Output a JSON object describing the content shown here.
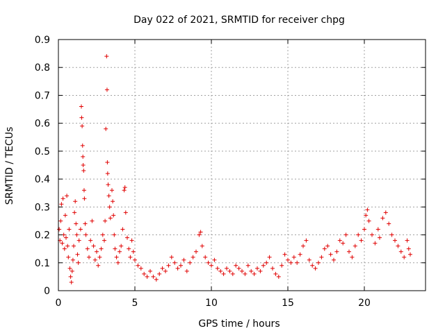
{
  "chart_data": {
    "type": "scatter",
    "title": "Day 022 of 2021, SRMTID for receiver chpg",
    "xlabel": "GPS time / hours",
    "ylabel": "SRMTID / TECUs",
    "xlim": [
      0,
      24
    ],
    "ylim": [
      0,
      0.9
    ],
    "xticks": [
      0,
      5,
      10,
      15,
      20
    ],
    "yticks": [
      0,
      0.1,
      0.2,
      0.3,
      0.4,
      0.5,
      0.6,
      0.7,
      0.8,
      0.9
    ],
    "grid": true,
    "marker": "+",
    "color": "#e00000",
    "series": [
      {
        "name": "SRMTID",
        "points": [
          [
            0.05,
            0.22
          ],
          [
            0.1,
            0.18
          ],
          [
            0.15,
            0.25
          ],
          [
            0.2,
            0.31
          ],
          [
            0.25,
            0.17
          ],
          [
            0.3,
            0.33
          ],
          [
            0.35,
            0.2
          ],
          [
            0.4,
            0.15
          ],
          [
            0.45,
            0.27
          ],
          [
            0.5,
            0.19
          ],
          [
            0.55,
            0.34
          ],
          [
            0.6,
            0.16
          ],
          [
            0.65,
            0.12
          ],
          [
            0.7,
            0.22
          ],
          [
            0.75,
            0.08
          ],
          [
            0.8,
            0.05
          ],
          [
            0.85,
            0.03
          ],
          [
            0.9,
            0.07
          ],
          [
            0.95,
            0.11
          ],
          [
            1.0,
            0.16
          ],
          [
            1.05,
            0.28
          ],
          [
            1.1,
            0.32
          ],
          [
            1.15,
            0.24
          ],
          [
            1.2,
            0.2
          ],
          [
            1.25,
            0.13
          ],
          [
            1.3,
            0.1
          ],
          [
            1.35,
            0.18
          ],
          [
            1.45,
            0.22
          ],
          [
            1.5,
            0.66
          ],
          [
            1.52,
            0.62
          ],
          [
            1.55,
            0.59
          ],
          [
            1.58,
            0.52
          ],
          [
            1.6,
            0.48
          ],
          [
            1.62,
            0.45
          ],
          [
            1.65,
            0.43
          ],
          [
            1.68,
            0.36
          ],
          [
            1.7,
            0.33
          ],
          [
            1.75,
            0.24
          ],
          [
            1.8,
            0.2
          ],
          [
            1.9,
            0.15
          ],
          [
            2.0,
            0.12
          ],
          [
            2.1,
            0.18
          ],
          [
            2.2,
            0.25
          ],
          [
            2.3,
            0.16
          ],
          [
            2.4,
            0.11
          ],
          [
            2.5,
            0.14
          ],
          [
            2.6,
            0.09
          ],
          [
            2.7,
            0.12
          ],
          [
            2.8,
            0.15
          ],
          [
            2.9,
            0.2
          ],
          [
            3.0,
            0.18
          ],
          [
            3.05,
            0.25
          ],
          [
            3.1,
            0.58
          ],
          [
            3.15,
            0.84
          ],
          [
            3.18,
            0.72
          ],
          [
            3.2,
            0.46
          ],
          [
            3.22,
            0.42
          ],
          [
            3.25,
            0.38
          ],
          [
            3.3,
            0.34
          ],
          [
            3.35,
            0.3
          ],
          [
            3.4,
            0.26
          ],
          [
            3.5,
            0.36
          ],
          [
            3.55,
            0.32
          ],
          [
            3.6,
            0.27
          ],
          [
            3.65,
            0.2
          ],
          [
            3.7,
            0.15
          ],
          [
            3.8,
            0.12
          ],
          [
            3.9,
            0.1
          ],
          [
            4.0,
            0.14
          ],
          [
            4.1,
            0.16
          ],
          [
            4.2,
            0.22
          ],
          [
            4.3,
            0.36
          ],
          [
            4.35,
            0.37
          ],
          [
            4.4,
            0.28
          ],
          [
            4.5,
            0.19
          ],
          [
            4.6,
            0.15
          ],
          [
            4.7,
            0.12
          ],
          [
            4.8,
            0.18
          ],
          [
            4.9,
            0.14
          ],
          [
            5.0,
            0.11
          ],
          [
            5.2,
            0.09
          ],
          [
            5.4,
            0.08
          ],
          [
            5.6,
            0.06
          ],
          [
            5.8,
            0.05
          ],
          [
            6.0,
            0.07
          ],
          [
            6.2,
            0.05
          ],
          [
            6.4,
            0.04
          ],
          [
            6.6,
            0.06
          ],
          [
            6.8,
            0.08
          ],
          [
            7.0,
            0.07
          ],
          [
            7.2,
            0.09
          ],
          [
            7.4,
            0.12
          ],
          [
            7.6,
            0.1
          ],
          [
            7.8,
            0.08
          ],
          [
            8.0,
            0.09
          ],
          [
            8.2,
            0.11
          ],
          [
            8.4,
            0.07
          ],
          [
            8.6,
            0.1
          ],
          [
            8.8,
            0.12
          ],
          [
            9.0,
            0.14
          ],
          [
            9.2,
            0.2
          ],
          [
            9.3,
            0.21
          ],
          [
            9.4,
            0.16
          ],
          [
            9.6,
            0.12
          ],
          [
            9.8,
            0.1
          ],
          [
            10.0,
            0.09
          ],
          [
            10.2,
            0.11
          ],
          [
            10.4,
            0.08
          ],
          [
            10.6,
            0.07
          ],
          [
            10.8,
            0.06
          ],
          [
            11.0,
            0.08
          ],
          [
            11.2,
            0.07
          ],
          [
            11.4,
            0.06
          ],
          [
            11.6,
            0.09
          ],
          [
            11.8,
            0.08
          ],
          [
            12.0,
            0.07
          ],
          [
            12.2,
            0.06
          ],
          [
            12.4,
            0.09
          ],
          [
            12.6,
            0.07
          ],
          [
            12.8,
            0.06
          ],
          [
            13.0,
            0.08
          ],
          [
            13.2,
            0.07
          ],
          [
            13.4,
            0.09
          ],
          [
            13.6,
            0.1
          ],
          [
            13.8,
            0.12
          ],
          [
            14.0,
            0.08
          ],
          [
            14.2,
            0.06
          ],
          [
            14.4,
            0.05
          ],
          [
            14.6,
            0.09
          ],
          [
            14.8,
            0.13
          ],
          [
            15.0,
            0.11
          ],
          [
            15.2,
            0.1
          ],
          [
            15.4,
            0.12
          ],
          [
            15.6,
            0.1
          ],
          [
            15.8,
            0.13
          ],
          [
            16.0,
            0.16
          ],
          [
            16.2,
            0.18
          ],
          [
            16.4,
            0.11
          ],
          [
            16.6,
            0.09
          ],
          [
            16.8,
            0.08
          ],
          [
            17.0,
            0.1
          ],
          [
            17.2,
            0.12
          ],
          [
            17.4,
            0.15
          ],
          [
            17.6,
            0.16
          ],
          [
            17.8,
            0.13
          ],
          [
            18.0,
            0.11
          ],
          [
            18.2,
            0.14
          ],
          [
            18.4,
            0.18
          ],
          [
            18.6,
            0.17
          ],
          [
            18.8,
            0.2
          ],
          [
            19.0,
            0.14
          ],
          [
            19.2,
            0.12
          ],
          [
            19.4,
            0.16
          ],
          [
            19.6,
            0.2
          ],
          [
            19.8,
            0.18
          ],
          [
            20.0,
            0.22
          ],
          [
            20.1,
            0.27
          ],
          [
            20.2,
            0.29
          ],
          [
            20.3,
            0.25
          ],
          [
            20.5,
            0.2
          ],
          [
            20.7,
            0.17
          ],
          [
            20.9,
            0.22
          ],
          [
            21.0,
            0.19
          ],
          [
            21.2,
            0.26
          ],
          [
            21.4,
            0.28
          ],
          [
            21.6,
            0.24
          ],
          [
            21.8,
            0.2
          ],
          [
            22.0,
            0.18
          ],
          [
            22.2,
            0.16
          ],
          [
            22.4,
            0.14
          ],
          [
            22.6,
            0.12
          ],
          [
            22.8,
            0.18
          ],
          [
            22.9,
            0.15
          ],
          [
            23.0,
            0.13
          ]
        ]
      }
    ]
  }
}
